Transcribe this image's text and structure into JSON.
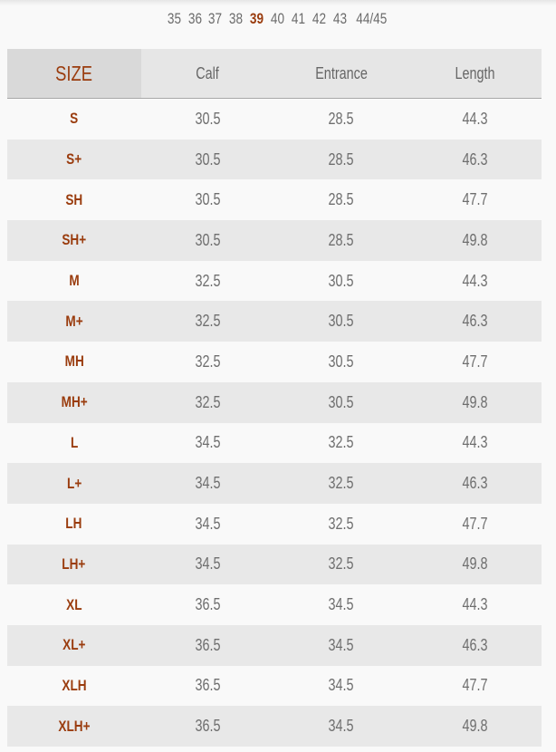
{
  "size_selector": {
    "options": [
      "35",
      "36",
      "37",
      "38",
      "39",
      "40",
      "41",
      "42",
      "43",
      "44/45"
    ],
    "selected": "39"
  },
  "table": {
    "headers": [
      "SIZE",
      "Calf",
      "Entrance",
      "Length"
    ],
    "rows": [
      [
        "S",
        "30.5",
        "28.5",
        "44.3"
      ],
      [
        "S+",
        "30.5",
        "28.5",
        "46.3"
      ],
      [
        "SH",
        "30.5",
        "28.5",
        "47.7"
      ],
      [
        "SH+",
        "30.5",
        "28.5",
        "49.8"
      ],
      [
        "M",
        "32.5",
        "30.5",
        "44.3"
      ],
      [
        "M+",
        "32.5",
        "30.5",
        "46.3"
      ],
      [
        "MH",
        "32.5",
        "30.5",
        "47.7"
      ],
      [
        "MH+",
        "32.5",
        "30.5",
        "49.8"
      ],
      [
        "L",
        "34.5",
        "32.5",
        "44.3"
      ],
      [
        "L+",
        "34.5",
        "32.5",
        "46.3"
      ],
      [
        "LH",
        "34.5",
        "32.5",
        "47.7"
      ],
      [
        "LH+",
        "34.5",
        "32.5",
        "49.8"
      ],
      [
        "XL",
        "36.5",
        "34.5",
        "44.3"
      ],
      [
        "XL+",
        "36.5",
        "34.5",
        "46.3"
      ],
      [
        "XLH",
        "36.5",
        "34.5",
        "47.7"
      ],
      [
        "XLH+",
        "36.5",
        "34.5",
        "49.8"
      ]
    ]
  },
  "colors": {
    "accent": "#9a3c0e",
    "text": "#6e6e6e",
    "stripe": "#e8e8e8"
  }
}
